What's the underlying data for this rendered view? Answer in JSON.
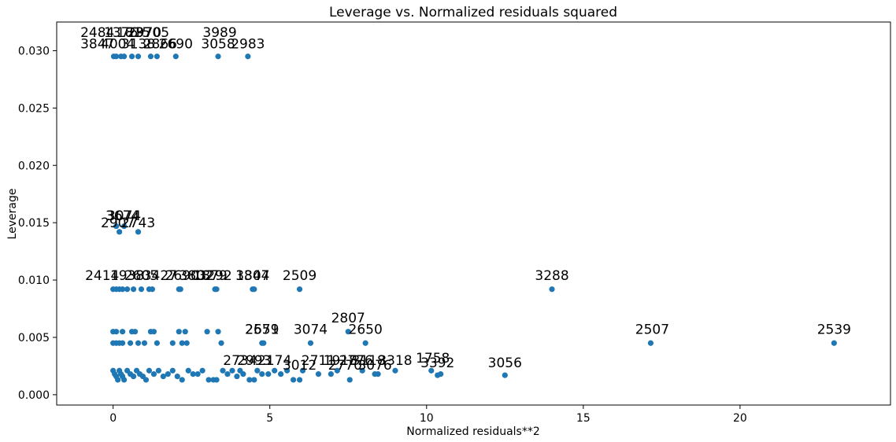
{
  "chart_data": {
    "type": "scatter",
    "title": "Leverage vs. Normalized residuals squared",
    "xlabel": "Normalized residuals**2",
    "ylabel": "Leverage",
    "xlim": [
      -1.8,
      24.8
    ],
    "ylim": [
      -0.0009,
      0.0325
    ],
    "xticks": [
      0,
      5,
      10,
      15,
      20
    ],
    "yticks": [
      0.0,
      0.005,
      0.01,
      0.015,
      0.02,
      0.025,
      0.03
    ],
    "ytick_labels": [
      "0.000",
      "0.005",
      "0.010",
      "0.015",
      "0.020",
      "0.025",
      "0.030"
    ],
    "marker_color": "#1f77b4",
    "grid": false,
    "points": [
      {
        "x": 0.02,
        "y": 0.0295
      },
      {
        "x": 0.1,
        "y": 0.0295
      },
      {
        "x": 0.25,
        "y": 0.0295
      },
      {
        "x": 0.35,
        "y": 0.0295
      },
      {
        "x": 0.6,
        "y": 0.0295
      },
      {
        "x": 0.8,
        "y": 0.0295
      },
      {
        "x": 1.2,
        "y": 0.0295
      },
      {
        "x": 1.4,
        "y": 0.0295
      },
      {
        "x": 2.0,
        "y": 0.0295
      },
      {
        "x": 3.35,
        "y": 0.0295
      },
      {
        "x": 4.3,
        "y": 0.0295
      },
      {
        "x": 0.1,
        "y": 0.0147
      },
      {
        "x": 0.2,
        "y": 0.0142
      },
      {
        "x": 0.35,
        "y": 0.0147
      },
      {
        "x": 0.8,
        "y": 0.0142
      },
      {
        "x": 0.0,
        "y": 0.0092
      },
      {
        "x": 0.1,
        "y": 0.0092
      },
      {
        "x": 0.2,
        "y": 0.0092
      },
      {
        "x": 0.3,
        "y": 0.0092
      },
      {
        "x": 0.45,
        "y": 0.0092
      },
      {
        "x": 0.65,
        "y": 0.0092
      },
      {
        "x": 0.9,
        "y": 0.0092
      },
      {
        "x": 1.15,
        "y": 0.0092
      },
      {
        "x": 1.25,
        "y": 0.0092
      },
      {
        "x": 2.1,
        "y": 0.0092
      },
      {
        "x": 2.15,
        "y": 0.0092
      },
      {
        "x": 3.25,
        "y": 0.0092
      },
      {
        "x": 3.3,
        "y": 0.0092
      },
      {
        "x": 4.45,
        "y": 0.0092
      },
      {
        "x": 4.5,
        "y": 0.0092
      },
      {
        "x": 5.95,
        "y": 0.0092
      },
      {
        "x": 14.0,
        "y": 0.0092
      },
      {
        "x": 0.0,
        "y": 0.0055
      },
      {
        "x": 0.1,
        "y": 0.0055
      },
      {
        "x": 0.3,
        "y": 0.0055
      },
      {
        "x": 0.6,
        "y": 0.0055
      },
      {
        "x": 0.7,
        "y": 0.0055
      },
      {
        "x": 1.2,
        "y": 0.0055
      },
      {
        "x": 1.3,
        "y": 0.0055
      },
      {
        "x": 2.1,
        "y": 0.0055
      },
      {
        "x": 2.3,
        "y": 0.0055
      },
      {
        "x": 3.0,
        "y": 0.0055
      },
      {
        "x": 3.35,
        "y": 0.0055
      },
      {
        "x": 7.5,
        "y": 0.0055
      },
      {
        "x": 0.0,
        "y": 0.0045
      },
      {
        "x": 0.1,
        "y": 0.0045
      },
      {
        "x": 0.2,
        "y": 0.0045
      },
      {
        "x": 0.3,
        "y": 0.0045
      },
      {
        "x": 0.55,
        "y": 0.0045
      },
      {
        "x": 0.8,
        "y": 0.0045
      },
      {
        "x": 1.0,
        "y": 0.0045
      },
      {
        "x": 1.4,
        "y": 0.0045
      },
      {
        "x": 1.9,
        "y": 0.0045
      },
      {
        "x": 2.2,
        "y": 0.0045
      },
      {
        "x": 2.35,
        "y": 0.0045
      },
      {
        "x": 3.45,
        "y": 0.0045
      },
      {
        "x": 4.75,
        "y": 0.0045
      },
      {
        "x": 4.8,
        "y": 0.0045
      },
      {
        "x": 6.3,
        "y": 0.0045
      },
      {
        "x": 8.05,
        "y": 0.0045
      },
      {
        "x": 17.15,
        "y": 0.0045
      },
      {
        "x": 23.0,
        "y": 0.0045
      },
      {
        "x": 0.0,
        "y": 0.0021
      },
      {
        "x": 0.05,
        "y": 0.0018
      },
      {
        "x": 0.1,
        "y": 0.0016
      },
      {
        "x": 0.15,
        "y": 0.0013
      },
      {
        "x": 0.2,
        "y": 0.0021
      },
      {
        "x": 0.25,
        "y": 0.0018
      },
      {
        "x": 0.3,
        "y": 0.0016
      },
      {
        "x": 0.35,
        "y": 0.0013
      },
      {
        "x": 0.45,
        "y": 0.0021
      },
      {
        "x": 0.55,
        "y": 0.0018
      },
      {
        "x": 0.65,
        "y": 0.0016
      },
      {
        "x": 0.75,
        "y": 0.0021
      },
      {
        "x": 0.85,
        "y": 0.0018
      },
      {
        "x": 0.95,
        "y": 0.0016
      },
      {
        "x": 1.05,
        "y": 0.0013
      },
      {
        "x": 1.15,
        "y": 0.0021
      },
      {
        "x": 1.3,
        "y": 0.0018
      },
      {
        "x": 1.45,
        "y": 0.0021
      },
      {
        "x": 1.6,
        "y": 0.0016
      },
      {
        "x": 1.75,
        "y": 0.0018
      },
      {
        "x": 1.9,
        "y": 0.0021
      },
      {
        "x": 2.05,
        "y": 0.0016
      },
      {
        "x": 2.2,
        "y": 0.0013
      },
      {
        "x": 2.4,
        "y": 0.0021
      },
      {
        "x": 2.55,
        "y": 0.0018
      },
      {
        "x": 2.7,
        "y": 0.0018
      },
      {
        "x": 2.85,
        "y": 0.0021
      },
      {
        "x": 3.05,
        "y": 0.0013
      },
      {
        "x": 3.2,
        "y": 0.0013
      },
      {
        "x": 3.3,
        "y": 0.0013
      },
      {
        "x": 3.5,
        "y": 0.0021
      },
      {
        "x": 3.65,
        "y": 0.0018
      },
      {
        "x": 3.8,
        "y": 0.0021
      },
      {
        "x": 3.95,
        "y": 0.0016
      },
      {
        "x": 4.05,
        "y": 0.0021
      },
      {
        "x": 4.15,
        "y": 0.0018
      },
      {
        "x": 4.35,
        "y": 0.0013
      },
      {
        "x": 4.5,
        "y": 0.0013
      },
      {
        "x": 4.6,
        "y": 0.0021
      },
      {
        "x": 4.75,
        "y": 0.0018
      },
      {
        "x": 4.95,
        "y": 0.0018
      },
      {
        "x": 5.15,
        "y": 0.0021
      },
      {
        "x": 5.35,
        "y": 0.0018
      },
      {
        "x": 5.55,
        "y": 0.0021
      },
      {
        "x": 5.75,
        "y": 0.0013
      },
      {
        "x": 5.95,
        "y": 0.0013
      },
      {
        "x": 6.05,
        "y": 0.0021
      },
      {
        "x": 6.55,
        "y": 0.0018
      },
      {
        "x": 6.95,
        "y": 0.0018
      },
      {
        "x": 7.15,
        "y": 0.0021
      },
      {
        "x": 7.55,
        "y": 0.0013
      },
      {
        "x": 7.95,
        "y": 0.0021
      },
      {
        "x": 8.35,
        "y": 0.0018
      },
      {
        "x": 8.45,
        "y": 0.0018
      },
      {
        "x": 9.0,
        "y": 0.0021
      },
      {
        "x": 10.15,
        "y": 0.0021
      },
      {
        "x": 10.35,
        "y": 0.0017
      },
      {
        "x": 10.45,
        "y": 0.0018
      },
      {
        "x": 12.5,
        "y": 0.0017
      }
    ],
    "annotations": [
      {
        "text": "2484",
        "x": -0.5,
        "y": 0.0312
      },
      {
        "text": "1376",
        "x": 0.25,
        "y": 0.0312
      },
      {
        "text": "1815",
        "x": 0.65,
        "y": 0.0312
      },
      {
        "text": "2970",
        "x": 1.0,
        "y": 0.0312
      },
      {
        "text": "3705",
        "x": 1.25,
        "y": 0.0312
      },
      {
        "text": "3989",
        "x": 3.4,
        "y": 0.0312
      },
      {
        "text": "3058",
        "x": 3.35,
        "y": 0.0302
      },
      {
        "text": "2983",
        "x": 4.3,
        "y": 0.0302
      },
      {
        "text": "3847",
        "x": -0.5,
        "y": 0.0302
      },
      {
        "text": "4004",
        "x": 0.15,
        "y": 0.0302
      },
      {
        "text": "3138",
        "x": 0.8,
        "y": 0.0302
      },
      {
        "text": "2866",
        "x": 1.5,
        "y": 0.0302
      },
      {
        "text": "2690",
        "x": 2.0,
        "y": 0.0302
      },
      {
        "text": "3074",
        "x": 0.35,
        "y": 0.0152
      },
      {
        "text": "3674",
        "x": 0.3,
        "y": 0.0152
      },
      {
        "text": "2907",
        "x": 0.15,
        "y": 0.0146
      },
      {
        "text": "2743",
        "x": 0.8,
        "y": 0.0146
      },
      {
        "text": "2414",
        "x": -0.35,
        "y": 0.01
      },
      {
        "text": "1938",
        "x": 0.45,
        "y": 0.01
      },
      {
        "text": "2605",
        "x": 0.9,
        "y": 0.01
      },
      {
        "text": "3427",
        "x": 1.5,
        "y": 0.01
      },
      {
        "text": "2690",
        "x": 2.2,
        "y": 0.01
      },
      {
        "text": "3292",
        "x": 3.25,
        "y": 0.01
      },
      {
        "text": "1879",
        "x": 3.1,
        "y": 0.01
      },
      {
        "text": "3802",
        "x": 2.65,
        "y": 0.01
      },
      {
        "text": "1844",
        "x": 4.45,
        "y": 0.01
      },
      {
        "text": "3307",
        "x": 4.45,
        "y": 0.01
      },
      {
        "text": "2509",
        "x": 5.95,
        "y": 0.01
      },
      {
        "text": "3288",
        "x": 14.0,
        "y": 0.01
      },
      {
        "text": "2807",
        "x": 7.5,
        "y": 0.0063
      },
      {
        "text": "2579",
        "x": 4.75,
        "y": 0.0053
      },
      {
        "text": "2651",
        "x": 4.75,
        "y": 0.0053
      },
      {
        "text": "3074",
        "x": 6.3,
        "y": 0.0053
      },
      {
        "text": "2650",
        "x": 8.05,
        "y": 0.0053
      },
      {
        "text": "2507",
        "x": 17.2,
        "y": 0.0053
      },
      {
        "text": "2539",
        "x": 23.0,
        "y": 0.0053
      },
      {
        "text": "2734",
        "x": 4.05,
        "y": 0.0026
      },
      {
        "text": "2993",
        "x": 4.5,
        "y": 0.0026
      },
      {
        "text": "2174",
        "x": 5.15,
        "y": 0.0026
      },
      {
        "text": "3012",
        "x": 5.95,
        "y": 0.0022
      },
      {
        "text": "2711",
        "x": 6.55,
        "y": 0.0026
      },
      {
        "text": "1918",
        "x": 7.25,
        "y": 0.0026
      },
      {
        "text": "2776",
        "x": 7.75,
        "y": 0.0026
      },
      {
        "text": "3118",
        "x": 8.15,
        "y": 0.0026
      },
      {
        "text": "2770",
        "x": 7.4,
        "y": 0.0022
      },
      {
        "text": "3076",
        "x": 8.35,
        "y": 0.0022
      },
      {
        "text": "3318",
        "x": 9.0,
        "y": 0.0026
      },
      {
        "text": "1758",
        "x": 10.2,
        "y": 0.0028
      },
      {
        "text": "3392",
        "x": 10.35,
        "y": 0.0024
      },
      {
        "text": "3056",
        "x": 12.5,
        "y": 0.0024
      }
    ]
  }
}
